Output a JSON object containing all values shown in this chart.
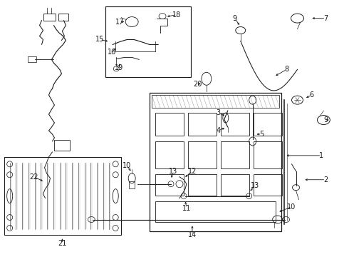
{
  "bg_color": "#ffffff",
  "line_color": "#1a1a1a",
  "fig_width": 4.9,
  "fig_height": 3.6,
  "dpi": 100,
  "font_size": 7.0,
  "lw": 0.75
}
